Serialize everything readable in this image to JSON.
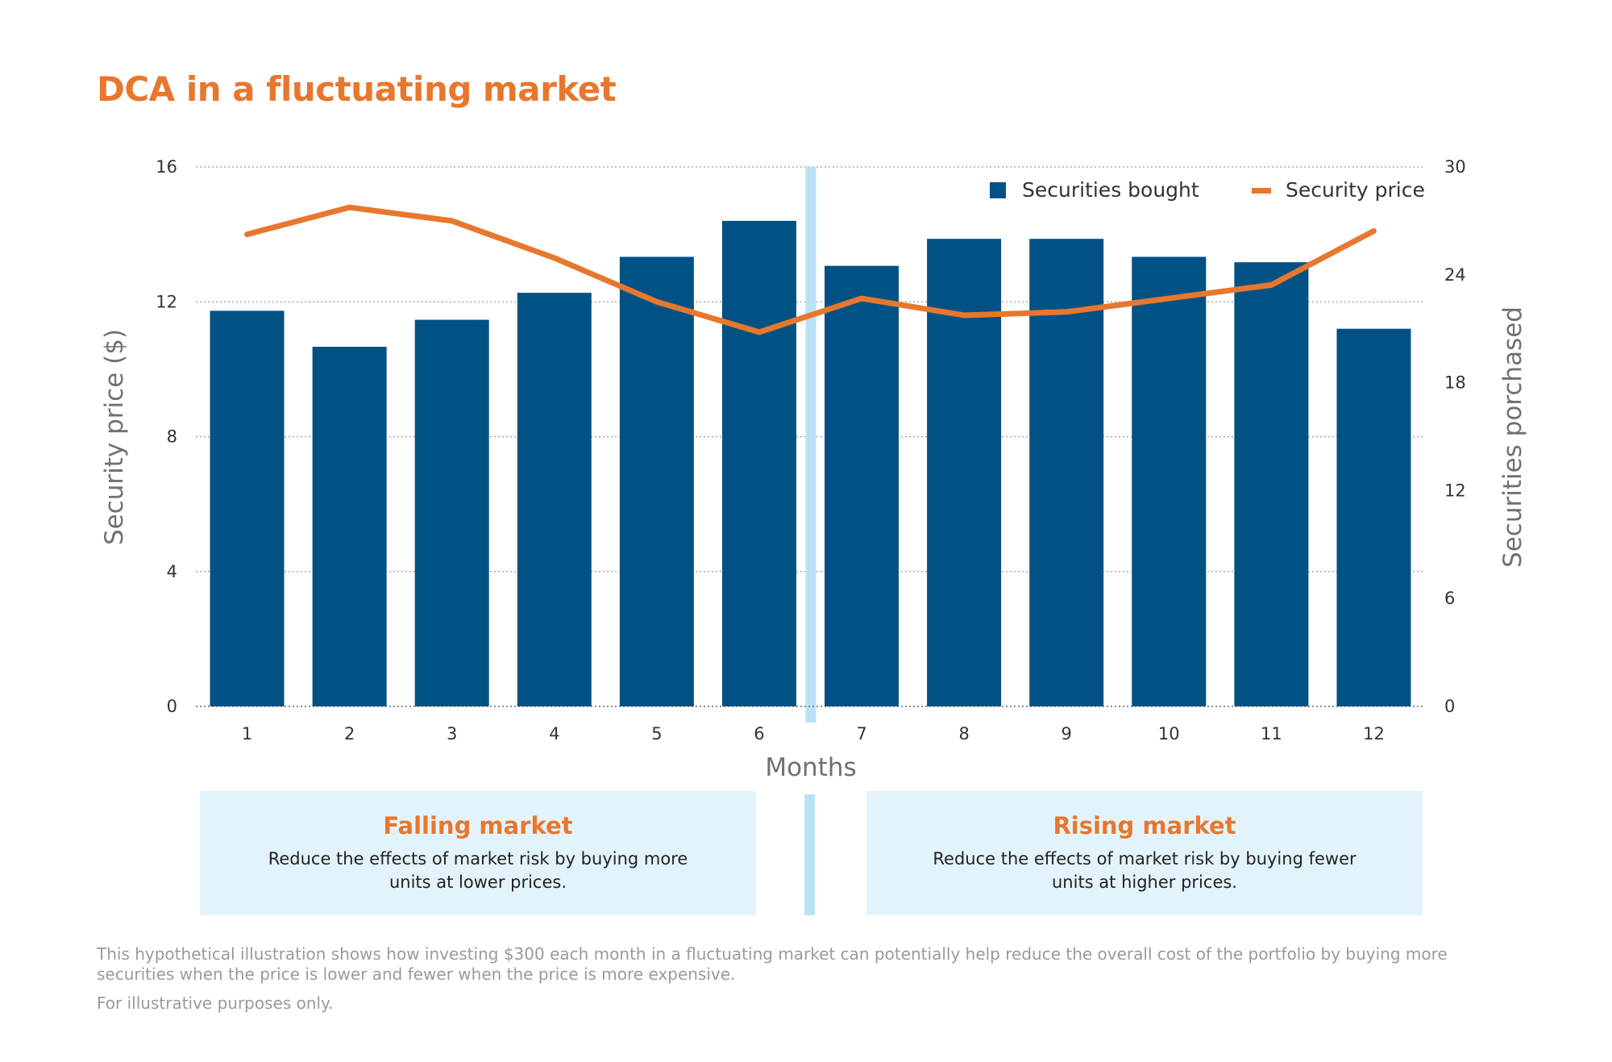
{
  "title": "DCA in a fluctuating market",
  "colors": {
    "title": "#e8772e",
    "bars": "#005284",
    "line": "#e8772e",
    "divider": "#b9e2f5",
    "panel_bg": "#e3f3fb",
    "axis_label": "#707070",
    "tick": "#333333",
    "grid": "#9a9a9a"
  },
  "chart_data": {
    "type": "bar",
    "title": "DCA in a fluctuating market",
    "xlabel": "Months",
    "ylabel": "Security price ($)",
    "y2label": "Securities porchased",
    "categories": [
      "1",
      "2",
      "3",
      "4",
      "5",
      "6",
      "7",
      "8",
      "9",
      "10",
      "11",
      "12"
    ],
    "ylim": [
      0,
      16
    ],
    "y2lim": [
      0,
      30
    ],
    "yticks": [
      "0",
      "4",
      "8",
      "12",
      "16"
    ],
    "y2ticks": [
      "0",
      "6",
      "12",
      "18",
      "24",
      "30"
    ],
    "grid": true,
    "legend_position": "top-right",
    "series": [
      {
        "name": "Securities bought",
        "type": "bar",
        "axis": "right",
        "values": [
          22,
          20,
          21.5,
          23,
          25,
          27,
          24.5,
          26,
          26,
          25,
          24.7,
          21
        ]
      },
      {
        "name": "Security price",
        "type": "line",
        "axis": "left",
        "values": [
          14,
          14.8,
          14.4,
          13.3,
          12,
          11.1,
          12.1,
          11.6,
          11.7,
          12.1,
          12.5,
          14.1
        ]
      }
    ]
  },
  "panels": {
    "falling": {
      "title": "Falling market",
      "text": "Reduce the effects of market risk by buying more units at lower prices."
    },
    "rising": {
      "title": "Rising market",
      "text": "Reduce the effects of market risk by buying fewer units at higher prices."
    }
  },
  "footnote": "This hypothetical illustration shows how investing $300 each month in a fluctuating market can potentially help reduce the overall cost of the portfolio by buying more securities when the price is lower and fewer when the price is more expensive.",
  "footnote2": "For illustrative purposes only."
}
